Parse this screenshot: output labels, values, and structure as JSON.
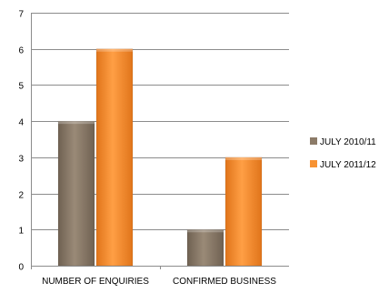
{
  "chart_data": {
    "type": "bar",
    "categories": [
      "NUMBER OF ENQUIRIES",
      "CONFIRMED BUSINESS"
    ],
    "series": [
      {
        "name": "JULY 2010/11",
        "values": [
          4,
          1
        ],
        "color": "#8c7b68"
      },
      {
        "name": "JULY 2011/12",
        "values": [
          6,
          3
        ],
        "color": "#f79232"
      }
    ],
    "ylim": [
      0,
      7
    ],
    "yticks": [
      0,
      1,
      2,
      3,
      4,
      5,
      6,
      7
    ],
    "grid": true,
    "legend_position": "right"
  }
}
